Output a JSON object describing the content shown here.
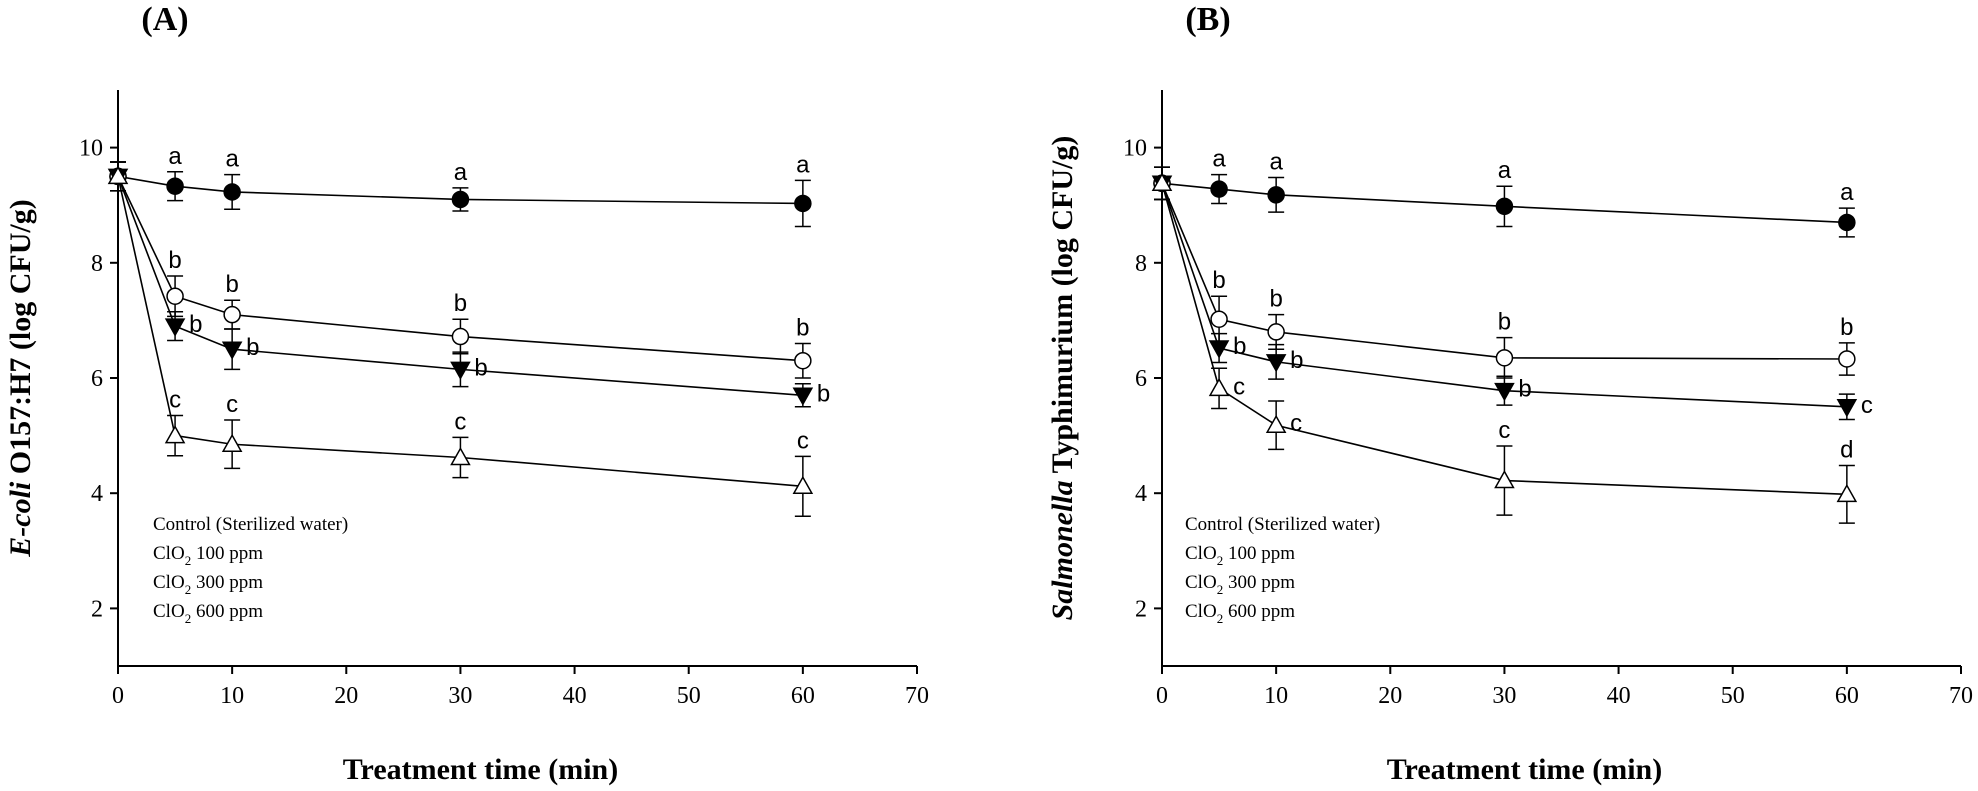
{
  "chart_data": [
    {
      "type": "line",
      "panel_label": "(A)",
      "xlabel": "Treatment time (min)",
      "ylabel_italic": "E-coli",
      "ylabel_rest": " O157:H7 (log CFU/g)",
      "xlim": [
        0,
        70
      ],
      "ylim": [
        1,
        11
      ],
      "xticks": [
        0,
        10,
        20,
        30,
        40,
        50,
        60,
        70
      ],
      "yticks": [
        2,
        4,
        6,
        8,
        10
      ],
      "x": [
        0,
        5,
        10,
        30,
        60
      ],
      "legend_placement": "bottom-left",
      "series": [
        {
          "name": "Control (Sterilized water)",
          "name_prefix": "Control (Sterilized water)",
          "name_sub": "",
          "name_suffix": "",
          "marker": "circle-filled",
          "values": [
            9.5,
            9.33,
            9.23,
            9.1,
            9.03
          ],
          "errors": [
            0.25,
            0.25,
            0.3,
            0.2,
            0.4
          ],
          "letters": [
            "",
            "a",
            "a",
            "a",
            "a"
          ]
        },
        {
          "name": "ClO2 100 ppm",
          "name_prefix": "ClO",
          "name_sub": "2",
          "name_suffix": " 100 ppm",
          "marker": "circle-open",
          "values": [
            9.5,
            7.42,
            7.1,
            6.72,
            6.3
          ],
          "errors": [
            0.25,
            0.35,
            0.25,
            0.3,
            0.3
          ],
          "letters": [
            "",
            "b",
            "b",
            "b",
            "b"
          ]
        },
        {
          "name": "ClO2 300 ppm",
          "name_prefix": "ClO",
          "name_sub": "2",
          "name_suffix": " 300 ppm",
          "marker": "triangle-down-filled",
          "values": [
            9.5,
            6.9,
            6.5,
            6.15,
            5.7
          ],
          "errors": [
            0.25,
            0.25,
            0.35,
            0.3,
            0.2
          ],
          "letters": [
            "",
            "b",
            "b",
            "b",
            "b"
          ]
        },
        {
          "name": "ClO2 600 ppm",
          "name_prefix": "ClO",
          "name_sub": "2",
          "name_suffix": " 600 ppm",
          "marker": "triangle-up-open",
          "values": [
            9.5,
            5.0,
            4.85,
            4.62,
            4.12
          ],
          "errors": [
            0.25,
            0.35,
            0.42,
            0.35,
            0.52
          ],
          "letters": [
            "",
            "c",
            "c",
            "c",
            "c"
          ]
        }
      ]
    },
    {
      "type": "line",
      "panel_label": "(B)",
      "xlabel": "Treatment time (min)",
      "ylabel_italic": "Salmonella",
      "ylabel_rest": " Typhimurium (log CFU/g)",
      "xlim": [
        0,
        70
      ],
      "ylim": [
        1,
        11
      ],
      "xticks": [
        0,
        10,
        20,
        30,
        40,
        50,
        60,
        70
      ],
      "yticks": [
        2,
        4,
        6,
        8,
        10
      ],
      "x": [
        0,
        5,
        10,
        30,
        60
      ],
      "legend_placement": "bottom-left",
      "series": [
        {
          "name": "Control (Sterilized water)",
          "name_prefix": "Control (Sterilized water)",
          "name_sub": "",
          "name_suffix": "",
          "marker": "circle-filled",
          "values": [
            9.38,
            9.28,
            9.18,
            8.98,
            8.7
          ],
          "errors": [
            0.28,
            0.25,
            0.3,
            0.35,
            0.25
          ],
          "letters": [
            "",
            "a",
            "a",
            "a",
            "a"
          ]
        },
        {
          "name": "ClO2 100 ppm",
          "name_prefix": "ClO",
          "name_sub": "2",
          "name_suffix": " 100 ppm",
          "marker": "circle-open",
          "values": [
            9.38,
            7.02,
            6.8,
            6.35,
            6.33
          ],
          "errors": [
            0.28,
            0.4,
            0.3,
            0.35,
            0.28
          ],
          "letters": [
            "",
            "b",
            "b",
            "b",
            "b"
          ]
        },
        {
          "name": "ClO2 300 ppm",
          "name_prefix": "ClO",
          "name_sub": "2",
          "name_suffix": " 300 ppm",
          "marker": "triangle-down-filled",
          "values": [
            9.38,
            6.52,
            6.28,
            5.78,
            5.5
          ],
          "errors": [
            0.28,
            0.25,
            0.3,
            0.25,
            0.22
          ],
          "letters": [
            "",
            "b",
            "b",
            "b",
            "c"
          ]
        },
        {
          "name": "ClO2 600 ppm",
          "name_prefix": "ClO",
          "name_sub": "2",
          "name_suffix": " 600 ppm",
          "marker": "triangle-up-open",
          "values": [
            9.38,
            5.82,
            5.18,
            4.22,
            3.98
          ],
          "errors": [
            0.28,
            0.35,
            0.42,
            0.6,
            0.5
          ],
          "letters": [
            "",
            "c",
            "c",
            "c",
            "d"
          ]
        }
      ]
    }
  ]
}
